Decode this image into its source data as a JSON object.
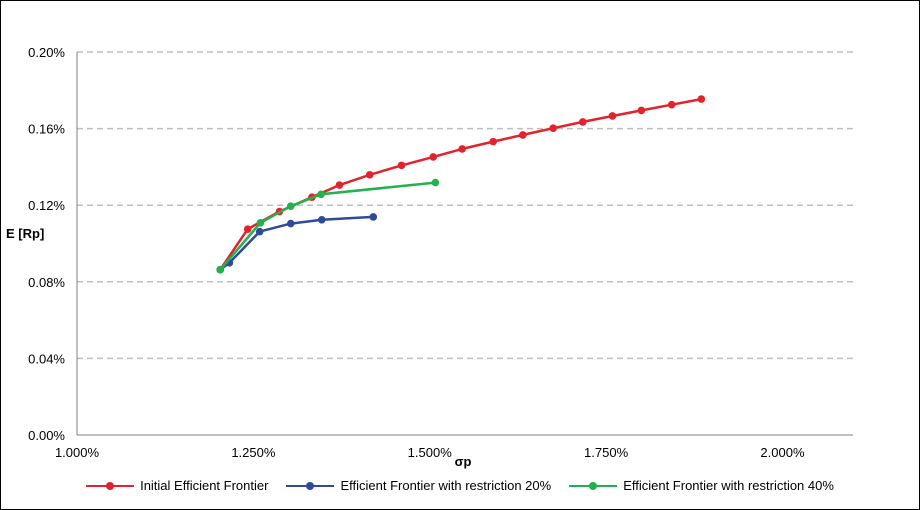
{
  "chart_data": {
    "type": "line",
    "title": "",
    "xlabel": "σp",
    "ylabel": "E [Rp]",
    "xlim": [
      0.01,
      0.021
    ],
    "ylim": [
      0.0,
      0.002
    ],
    "x_ticks": [
      0.01,
      0.0125,
      0.015,
      0.0175,
      0.02
    ],
    "x_tick_labels": [
      "1.000%",
      "1.250%",
      "1.500%",
      "1.750%",
      "2.000%"
    ],
    "y_ticks": [
      0.0,
      0.0004,
      0.0008,
      0.0012,
      0.0016,
      0.002
    ],
    "y_tick_labels": [
      "0.00%",
      "0.04%",
      "0.08%",
      "0.12%",
      "0.16%",
      "0.20%"
    ],
    "grid": "horizontal dashed",
    "legend_position": "bottom",
    "series": [
      {
        "name": "Initial Efficient Frontier",
        "color": "#e3232c",
        "points": [
          [
            0.01203,
            0.000863
          ],
          [
            0.01242,
            0.001075
          ],
          [
            0.01287,
            0.001167
          ],
          [
            0.01333,
            0.001242
          ],
          [
            0.01372,
            0.001305
          ],
          [
            0.01415,
            0.001359
          ],
          [
            0.0146,
            0.001408
          ],
          [
            0.01505,
            0.001452
          ],
          [
            0.01546,
            0.001494
          ],
          [
            0.0159,
            0.001532
          ],
          [
            0.01632,
            0.001567
          ],
          [
            0.01675,
            0.001602
          ],
          [
            0.01717,
            0.001635
          ],
          [
            0.01759,
            0.001666
          ],
          [
            0.018,
            0.001695
          ],
          [
            0.01843,
            0.001725
          ],
          [
            0.01885,
            0.001754
          ]
        ]
      },
      {
        "name": "Efficient Frontier with restriction 20%",
        "color": "#2e4b9b",
        "points": [
          [
            0.01203,
            0.000863
          ],
          [
            0.01216,
            0.000899
          ],
          [
            0.01259,
            0.001062
          ],
          [
            0.01303,
            0.001104
          ],
          [
            0.01347,
            0.001124
          ],
          [
            0.0142,
            0.001139
          ]
        ]
      },
      {
        "name": "Efficient Frontier with restriction 40%",
        "color": "#22b14c",
        "points": [
          [
            0.01203,
            0.000863
          ],
          [
            0.0126,
            0.001108
          ],
          [
            0.01303,
            0.001195
          ],
          [
            0.01346,
            0.001257
          ],
          [
            0.01508,
            0.001318
          ]
        ]
      }
    ]
  }
}
